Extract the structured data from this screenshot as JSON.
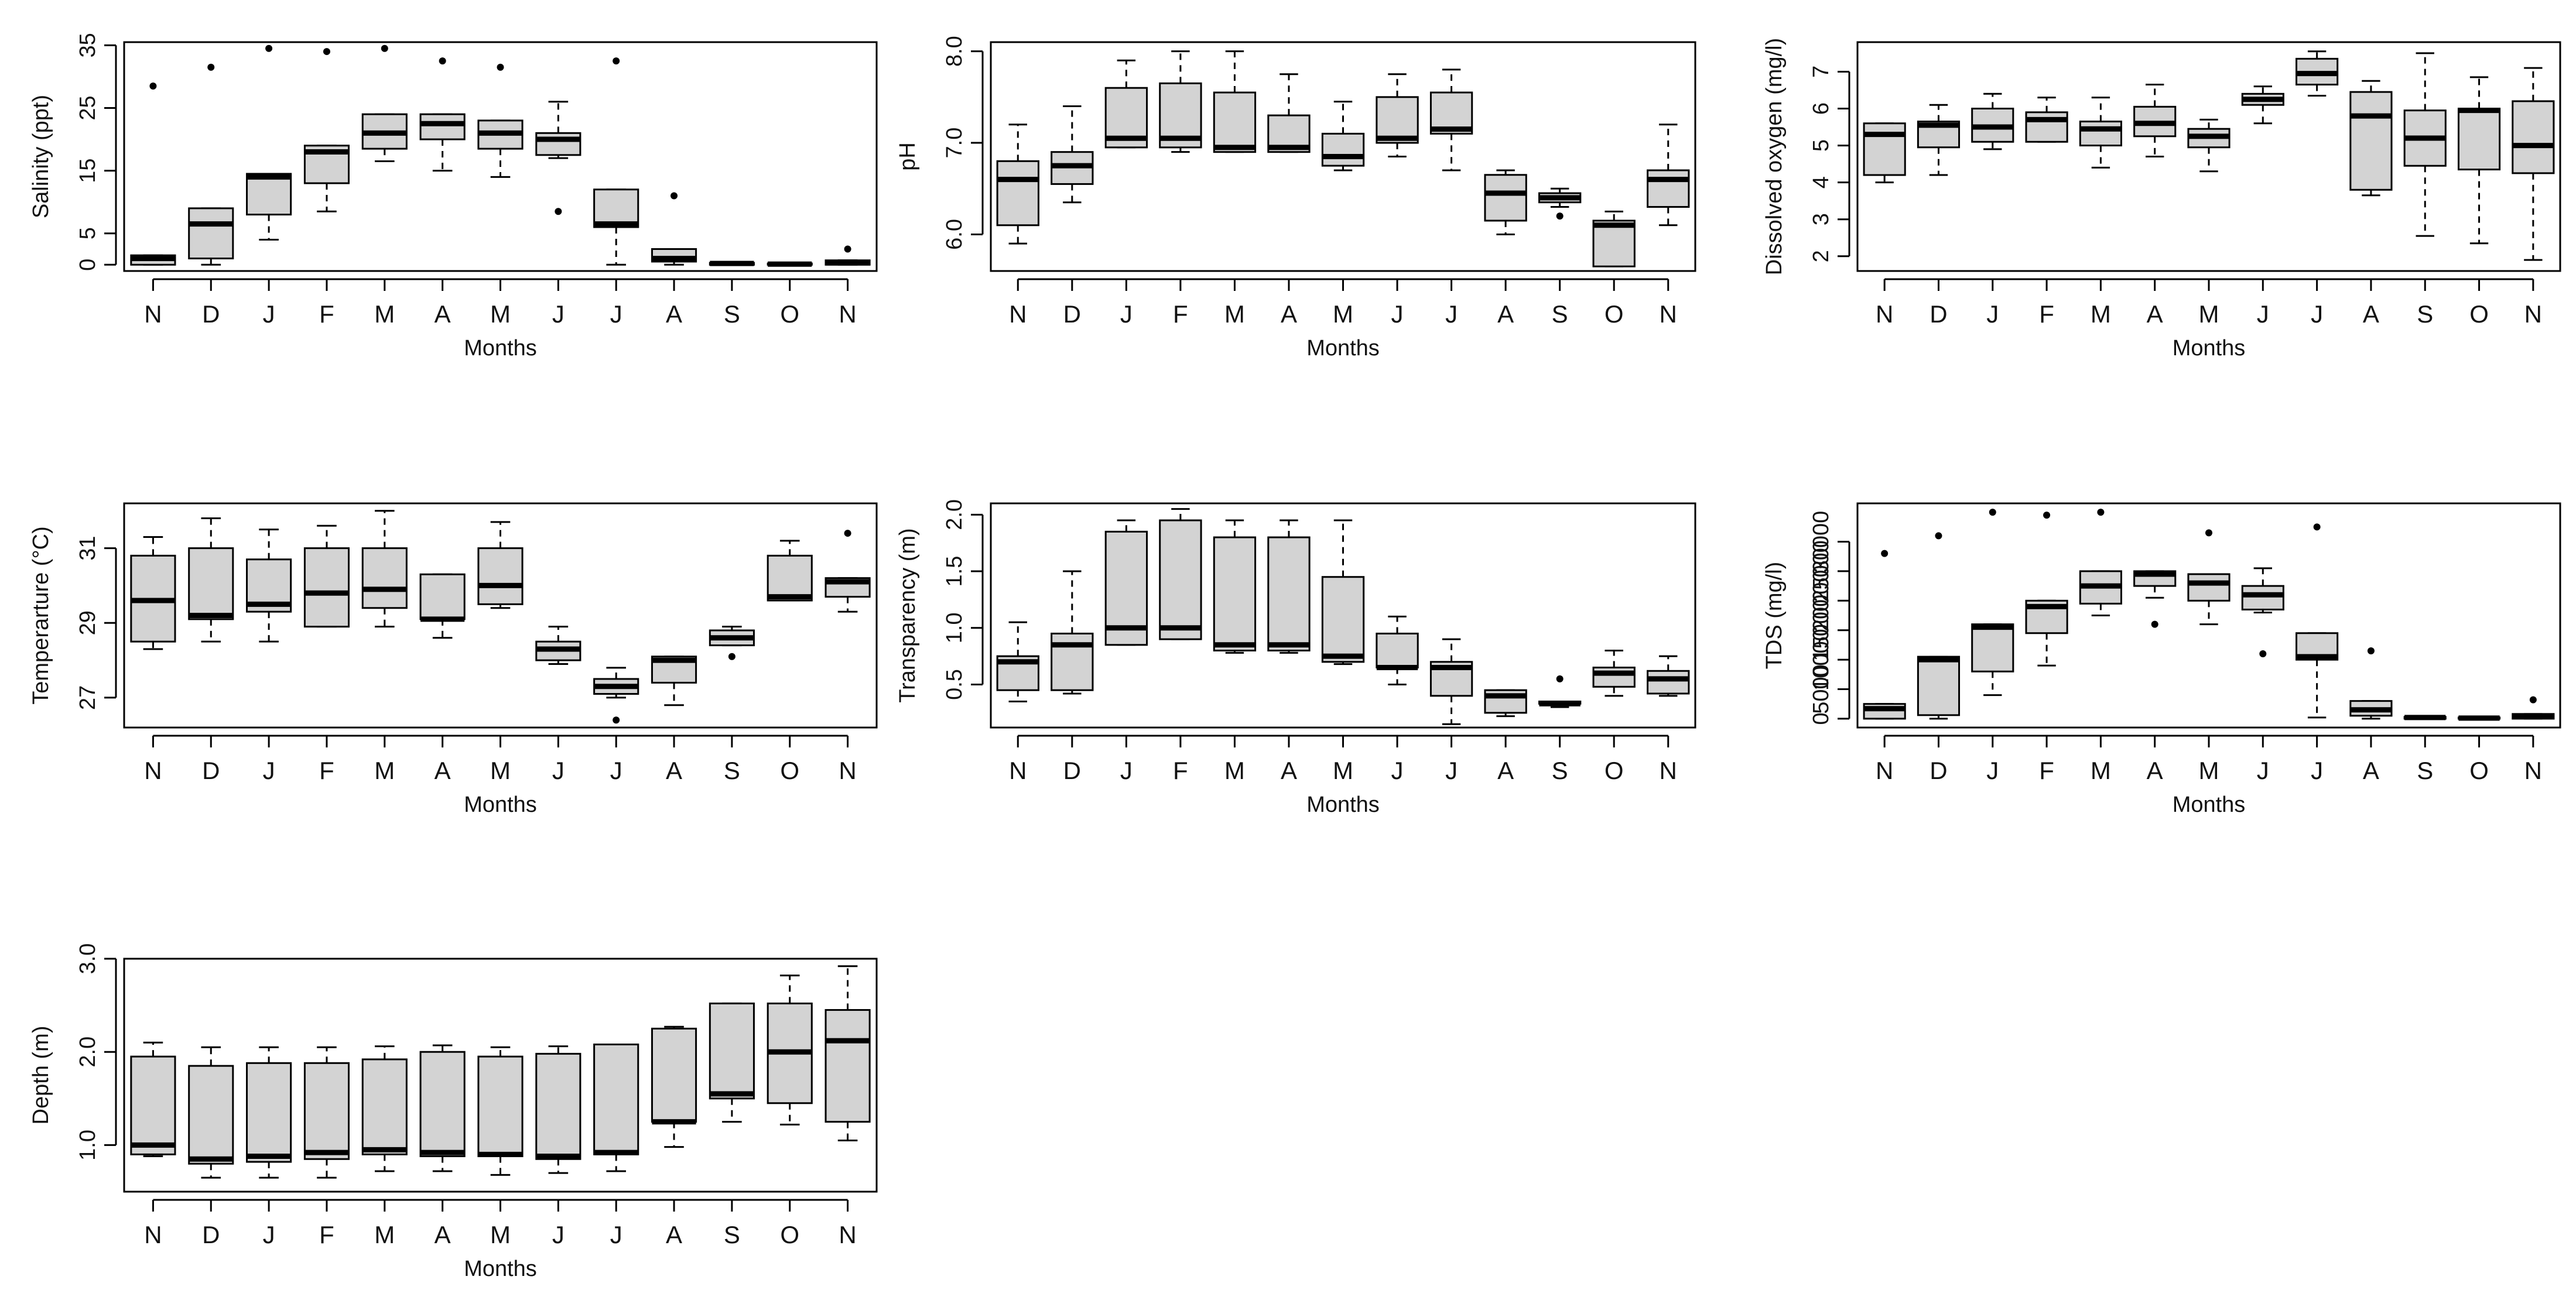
{
  "chart_data": [
    {
      "type": "boxplot",
      "ylabel": "Salinity (ppt)",
      "xlabel": "Months",
      "categories": [
        "N",
        "D",
        "J",
        "F",
        "M",
        "A",
        "M",
        "J",
        "J",
        "A",
        "S",
        "O",
        "N"
      ],
      "ylim": [
        -1,
        35.5
      ],
      "yticks": [
        0,
        5,
        15,
        25,
        35
      ],
      "ytick_labels": [
        "0",
        "5",
        "15",
        "25",
        "35"
      ],
      "boxes": [
        {
          "min": 0,
          "q1": 0,
          "median": 1,
          "q3": 1.5,
          "max": 1.5,
          "outliers": [
            28.5
          ]
        },
        {
          "min": 0,
          "q1": 1,
          "median": 6.5,
          "q3": 9,
          "max": 9,
          "outliers": [
            31.5
          ]
        },
        {
          "min": 4,
          "q1": 8,
          "median": 14,
          "q3": 14.5,
          "max": 14.5,
          "outliers": [
            34.5
          ]
        },
        {
          "min": 8.5,
          "q1": 13,
          "median": 18,
          "q3": 19,
          "max": 19,
          "outliers": [
            34
          ]
        },
        {
          "min": 16.5,
          "q1": 18.5,
          "median": 21,
          "q3": 24,
          "max": 24,
          "outliers": [
            34.5
          ]
        },
        {
          "min": 15,
          "q1": 20,
          "median": 22.5,
          "q3": 24,
          "max": 24,
          "outliers": [
            32.5
          ]
        },
        {
          "min": 14,
          "q1": 18.5,
          "median": 21,
          "q3": 23,
          "max": 23,
          "outliers": [
            31.5
          ]
        },
        {
          "min": 17,
          "q1": 17.5,
          "median": 20,
          "q3": 21,
          "max": 26,
          "outliers": [
            8.5
          ]
        },
        {
          "min": 0,
          "q1": 6,
          "median": 6.5,
          "q3": 12,
          "max": 12,
          "outliers": [
            32.5
          ]
        },
        {
          "min": 0,
          "q1": 0.5,
          "median": 1,
          "q3": 2.5,
          "max": 2.5,
          "outliers": [
            11
          ]
        },
        {
          "min": 0,
          "q1": 0,
          "median": 0.2,
          "q3": 0.3,
          "max": 0.3,
          "outliers": []
        },
        {
          "min": 0,
          "q1": 0,
          "median": 0.1,
          "q3": 0.2,
          "max": 0.2,
          "outliers": []
        },
        {
          "min": 0,
          "q1": 0,
          "median": 0.3,
          "q3": 0.7,
          "max": 0.7,
          "outliers": [
            2.5
          ]
        }
      ]
    },
    {
      "type": "boxplot",
      "ylabel": "pH",
      "xlabel": "Months",
      "categories": [
        "N",
        "D",
        "J",
        "F",
        "M",
        "A",
        "M",
        "J",
        "J",
        "A",
        "S",
        "O",
        "N"
      ],
      "ylim": [
        5.6,
        8.1
      ],
      "yticks": [
        6,
        7,
        8
      ],
      "ytick_labels": [
        "6.0",
        "7.0",
        "8.0"
      ],
      "boxes": [
        {
          "min": 5.9,
          "q1": 6.1,
          "median": 6.6,
          "q3": 6.8,
          "max": 7.2,
          "outliers": []
        },
        {
          "min": 6.35,
          "q1": 6.55,
          "median": 6.75,
          "q3": 6.9,
          "max": 7.4,
          "outliers": []
        },
        {
          "min": 6.95,
          "q1": 6.95,
          "median": 7.05,
          "q3": 7.6,
          "max": 7.9,
          "outliers": []
        },
        {
          "min": 6.9,
          "q1": 6.95,
          "median": 7.05,
          "q3": 7.65,
          "max": 8.0,
          "outliers": []
        },
        {
          "min": 6.9,
          "q1": 6.9,
          "median": 6.95,
          "q3": 7.55,
          "max": 8.0,
          "outliers": []
        },
        {
          "min": 6.9,
          "q1": 6.9,
          "median": 6.95,
          "q3": 7.3,
          "max": 7.75,
          "outliers": []
        },
        {
          "min": 6.7,
          "q1": 6.75,
          "median": 6.85,
          "q3": 7.1,
          "max": 7.45,
          "outliers": []
        },
        {
          "min": 6.85,
          "q1": 7.0,
          "median": 7.05,
          "q3": 7.5,
          "max": 7.75,
          "outliers": []
        },
        {
          "min": 6.7,
          "q1": 7.1,
          "median": 7.15,
          "q3": 7.55,
          "max": 7.8,
          "outliers": []
        },
        {
          "min": 6.0,
          "q1": 6.15,
          "median": 6.45,
          "q3": 6.65,
          "max": 6.7,
          "outliers": []
        },
        {
          "min": 6.3,
          "q1": 6.35,
          "median": 6.4,
          "q3": 6.45,
          "max": 6.5,
          "outliers": [
            6.2
          ]
        },
        {
          "min": 5.65,
          "q1": 5.65,
          "median": 6.1,
          "q3": 6.15,
          "max": 6.25,
          "outliers": []
        },
        {
          "min": 6.1,
          "q1": 6.3,
          "median": 6.6,
          "q3": 6.7,
          "max": 7.2,
          "outliers": []
        }
      ]
    },
    {
      "type": "boxplot",
      "ylabel": "Dissolved oxygen (mg/l)",
      "xlabel": "Months",
      "categories": [
        "N",
        "D",
        "J",
        "F",
        "M",
        "A",
        "M",
        "J",
        "J",
        "A",
        "S",
        "O",
        "N"
      ],
      "ylim": [
        1.6,
        7.8
      ],
      "yticks": [
        2,
        3,
        4,
        5,
        6,
        7
      ],
      "ytick_labels": [
        "2",
        "3",
        "4",
        "5",
        "6",
        "7"
      ],
      "boxes": [
        {
          "min": 4.0,
          "q1": 4.2,
          "median": 5.3,
          "q3": 5.6,
          "max": 5.6,
          "outliers": []
        },
        {
          "min": 4.2,
          "q1": 4.95,
          "median": 5.55,
          "q3": 5.65,
          "max": 6.1,
          "outliers": []
        },
        {
          "min": 4.9,
          "q1": 5.1,
          "median": 5.5,
          "q3": 6.0,
          "max": 6.4,
          "outliers": []
        },
        {
          "min": 5.1,
          "q1": 5.1,
          "median": 5.7,
          "q3": 5.9,
          "max": 6.3,
          "outliers": []
        },
        {
          "min": 4.4,
          "q1": 5.0,
          "median": 5.45,
          "q3": 5.65,
          "max": 6.3,
          "outliers": []
        },
        {
          "min": 4.7,
          "q1": 5.25,
          "median": 5.6,
          "q3": 6.05,
          "max": 6.65,
          "outliers": []
        },
        {
          "min": 4.3,
          "q1": 4.95,
          "median": 5.25,
          "q3": 5.45,
          "max": 5.7,
          "outliers": []
        },
        {
          "min": 5.6,
          "q1": 6.1,
          "median": 6.25,
          "q3": 6.4,
          "max": 6.6,
          "outliers": []
        },
        {
          "min": 6.35,
          "q1": 6.65,
          "median": 6.95,
          "q3": 7.35,
          "max": 7.55,
          "outliers": []
        },
        {
          "min": 3.65,
          "q1": 3.8,
          "median": 5.8,
          "q3": 6.45,
          "max": 6.75,
          "outliers": []
        },
        {
          "min": 2.55,
          "q1": 4.45,
          "median": 5.2,
          "q3": 5.95,
          "max": 7.5,
          "outliers": []
        },
        {
          "min": 2.35,
          "q1": 4.35,
          "median": 5.95,
          "q3": 6.0,
          "max": 6.85,
          "outliers": []
        },
        {
          "min": 1.9,
          "q1": 4.25,
          "median": 5.0,
          "q3": 6.2,
          "max": 7.1,
          "outliers": []
        }
      ]
    },
    {
      "type": "boxplot",
      "ylabel": "Temperarture (°C)",
      "xlabel": "Months",
      "categories": [
        "N",
        "D",
        "J",
        "F",
        "M",
        "A",
        "M",
        "J",
        "J",
        "A",
        "S",
        "O",
        "N"
      ],
      "ylim": [
        26.2,
        32.2
      ],
      "yticks": [
        27,
        29,
        31
      ],
      "ytick_labels": [
        "27",
        "29",
        "31"
      ],
      "boxes": [
        {
          "min": 28.3,
          "q1": 28.5,
          "median": 29.6,
          "q3": 30.8,
          "max": 31.3,
          "outliers": []
        },
        {
          "min": 28.5,
          "q1": 29.1,
          "median": 29.2,
          "q3": 31.0,
          "max": 31.8,
          "outliers": []
        },
        {
          "min": 28.5,
          "q1": 29.3,
          "median": 29.5,
          "q3": 30.7,
          "max": 31.5,
          "outliers": []
        },
        {
          "min": 28.9,
          "q1": 28.9,
          "median": 29.8,
          "q3": 31.0,
          "max": 31.6,
          "outliers": []
        },
        {
          "min": 28.9,
          "q1": 29.4,
          "median": 29.9,
          "q3": 31.0,
          "max": 32.0,
          "outliers": []
        },
        {
          "min": 28.6,
          "q1": 29.1,
          "median": 29.1,
          "q3": 30.3,
          "max": 30.3,
          "outliers": []
        },
        {
          "min": 29.4,
          "q1": 29.5,
          "median": 30.0,
          "q3": 31.0,
          "max": 31.7,
          "outliers": []
        },
        {
          "min": 27.9,
          "q1": 28.0,
          "median": 28.3,
          "q3": 28.5,
          "max": 28.9,
          "outliers": []
        },
        {
          "min": 27.0,
          "q1": 27.1,
          "median": 27.3,
          "q3": 27.5,
          "max": 27.8,
          "outliers": [
            26.4
          ]
        },
        {
          "min": 26.8,
          "q1": 27.4,
          "median": 28.0,
          "q3": 28.1,
          "max": 28.1,
          "outliers": []
        },
        {
          "min": 28.4,
          "q1": 28.4,
          "median": 28.6,
          "q3": 28.8,
          "max": 28.9,
          "outliers": [
            28.1
          ]
        },
        {
          "min": 29.6,
          "q1": 29.6,
          "median": 29.7,
          "q3": 30.8,
          "max": 31.2,
          "outliers": []
        },
        {
          "min": 29.3,
          "q1": 29.7,
          "median": 30.1,
          "q3": 30.2,
          "max": 30.2,
          "outliers": [
            31.4
          ]
        }
      ]
    },
    {
      "type": "boxplot",
      "ylabel": "Transparency (m)",
      "xlabel": "Months",
      "categories": [
        "N",
        "D",
        "J",
        "F",
        "M",
        "A",
        "M",
        "J",
        "J",
        "A",
        "S",
        "O",
        "N"
      ],
      "ylim": [
        0.12,
        2.1
      ],
      "yticks": [
        0.5,
        1.0,
        1.5,
        2.0
      ],
      "ytick_labels": [
        "0.5",
        "1.0",
        "1.5",
        "2.0"
      ],
      "boxes": [
        {
          "min": 0.35,
          "q1": 0.45,
          "median": 0.7,
          "q3": 0.75,
          "max": 1.05,
          "outliers": []
        },
        {
          "min": 0.42,
          "q1": 0.45,
          "median": 0.85,
          "q3": 0.95,
          "max": 1.5,
          "outliers": []
        },
        {
          "min": 0.85,
          "q1": 0.85,
          "median": 1.0,
          "q3": 1.85,
          "max": 1.95,
          "outliers": []
        },
        {
          "min": 0.9,
          "q1": 0.9,
          "median": 1.0,
          "q3": 1.95,
          "max": 2.05,
          "outliers": []
        },
        {
          "min": 0.78,
          "q1": 0.8,
          "median": 0.85,
          "q3": 1.8,
          "max": 1.95,
          "outliers": []
        },
        {
          "min": 0.78,
          "q1": 0.8,
          "median": 0.85,
          "q3": 1.8,
          "max": 1.95,
          "outliers": []
        },
        {
          "min": 0.68,
          "q1": 0.7,
          "median": 0.75,
          "q3": 1.45,
          "max": 1.95,
          "outliers": []
        },
        {
          "min": 0.5,
          "q1": 0.65,
          "median": 0.65,
          "q3": 0.95,
          "max": 1.1,
          "outliers": []
        },
        {
          "min": 0.15,
          "q1": 0.4,
          "median": 0.65,
          "q3": 0.7,
          "max": 0.9,
          "outliers": []
        },
        {
          "min": 0.22,
          "q1": 0.25,
          "median": 0.4,
          "q3": 0.45,
          "max": 0.45,
          "outliers": []
        },
        {
          "min": 0.3,
          "q1": 0.33,
          "median": 0.33,
          "q3": 0.35,
          "max": 0.35,
          "outliers": [
            0.55
          ]
        },
        {
          "min": 0.4,
          "q1": 0.48,
          "median": 0.6,
          "q3": 0.65,
          "max": 0.8,
          "outliers": []
        },
        {
          "min": 0.4,
          "q1": 0.42,
          "median": 0.55,
          "q3": 0.62,
          "max": 0.75,
          "outliers": []
        }
      ]
    },
    {
      "type": "boxplot",
      "ylabel": "TDS (mg/l)",
      "xlabel": "Months",
      "categories": [
        "N",
        "D",
        "J",
        "F",
        "M",
        "A",
        "M",
        "J",
        "J",
        "A",
        "S",
        "O",
        "N"
      ],
      "ylim": [
        -1500,
        36500
      ],
      "yticks": [
        0,
        5000,
        10000,
        15000,
        20000,
        25000,
        30000
      ],
      "ytick_labels": [
        "0",
        "5000",
        "10000",
        "15000",
        "20000",
        "25000",
        "30000"
      ],
      "tick_style": "compressed",
      "boxes": [
        {
          "min": 0,
          "q1": 0,
          "median": 1700,
          "q3": 2500,
          "max": 2500,
          "outliers": [
            28000
          ]
        },
        {
          "min": 0,
          "q1": 600,
          "median": 10000,
          "q3": 10500,
          "max": 10500,
          "outliers": [
            31000
          ]
        },
        {
          "min": 4000,
          "q1": 8000,
          "median": 15500,
          "q3": 16000,
          "max": 16000,
          "outliers": [
            35000
          ]
        },
        {
          "min": 9000,
          "q1": 14500,
          "median": 19000,
          "q3": 20000,
          "max": 20000,
          "outliers": [
            34500
          ]
        },
        {
          "min": 17500,
          "q1": 19500,
          "median": 22500,
          "q3": 25000,
          "max": 25000,
          "outliers": [
            35000
          ]
        },
        {
          "min": 20500,
          "q1": 22500,
          "median": 24500,
          "q3": 25000,
          "max": 25000,
          "outliers": [
            16000
          ]
        },
        {
          "min": 16000,
          "q1": 20000,
          "median": 23000,
          "q3": 24500,
          "max": 24500,
          "outliers": [
            31500
          ]
        },
        {
          "min": 18000,
          "q1": 18500,
          "median": 21000,
          "q3": 22500,
          "max": 25500,
          "outliers": [
            11000
          ]
        },
        {
          "min": 200,
          "q1": 10000,
          "median": 10500,
          "q3": 14500,
          "max": 14500,
          "outliers": [
            32500
          ]
        },
        {
          "min": 0,
          "q1": 500,
          "median": 1500,
          "q3": 3000,
          "max": 3000,
          "outliers": [
            11500
          ]
        },
        {
          "min": 0,
          "q1": 0,
          "median": 200,
          "q3": 300,
          "max": 300,
          "outliers": []
        },
        {
          "min": 0,
          "q1": 0,
          "median": 100,
          "q3": 200,
          "max": 200,
          "outliers": []
        },
        {
          "min": 0,
          "q1": 0,
          "median": 400,
          "q3": 800,
          "max": 800,
          "outliers": [
            3200
          ]
        }
      ]
    },
    {
      "type": "boxplot",
      "ylabel": "Depth (m)",
      "xlabel": "Months",
      "categories": [
        "N",
        "D",
        "J",
        "F",
        "M",
        "A",
        "M",
        "J",
        "J",
        "A",
        "S",
        "O",
        "N"
      ],
      "ylim": [
        0.5,
        3.0
      ],
      "yticks": [
        1.0,
        2.0,
        3.0
      ],
      "ytick_labels": [
        "1.0",
        "2.0",
        "3.0"
      ],
      "boxes": [
        {
          "min": 0.88,
          "q1": 0.9,
          "median": 1.0,
          "q3": 1.95,
          "max": 2.1,
          "outliers": []
        },
        {
          "min": 0.65,
          "q1": 0.8,
          "median": 0.85,
          "q3": 1.85,
          "max": 2.05,
          "outliers": []
        },
        {
          "min": 0.65,
          "q1": 0.82,
          "median": 0.88,
          "q3": 1.88,
          "max": 2.05,
          "outliers": []
        },
        {
          "min": 0.65,
          "q1": 0.85,
          "median": 0.92,
          "q3": 1.88,
          "max": 2.05,
          "outliers": []
        },
        {
          "min": 0.72,
          "q1": 0.9,
          "median": 0.95,
          "q3": 1.92,
          "max": 2.06,
          "outliers": []
        },
        {
          "min": 0.72,
          "q1": 0.88,
          "median": 0.92,
          "q3": 2.0,
          "max": 2.07,
          "outliers": []
        },
        {
          "min": 0.68,
          "q1": 0.88,
          "median": 0.9,
          "q3": 1.95,
          "max": 2.05,
          "outliers": []
        },
        {
          "min": 0.7,
          "q1": 0.85,
          "median": 0.88,
          "q3": 1.98,
          "max": 2.06,
          "outliers": []
        },
        {
          "min": 0.72,
          "q1": 0.9,
          "median": 0.92,
          "q3": 2.08,
          "max": 2.08,
          "outliers": []
        },
        {
          "min": 0.98,
          "q1": 1.25,
          "median": 1.25,
          "q3": 2.25,
          "max": 2.27,
          "outliers": []
        },
        {
          "min": 1.25,
          "q1": 1.5,
          "median": 1.55,
          "q3": 2.52,
          "max": 2.52,
          "outliers": []
        },
        {
          "min": 1.22,
          "q1": 1.45,
          "median": 2.0,
          "q3": 2.52,
          "max": 2.82,
          "outliers": []
        },
        {
          "min": 1.05,
          "q1": 1.25,
          "median": 2.12,
          "q3": 2.45,
          "max": 2.92,
          "outliers": []
        }
      ]
    }
  ]
}
